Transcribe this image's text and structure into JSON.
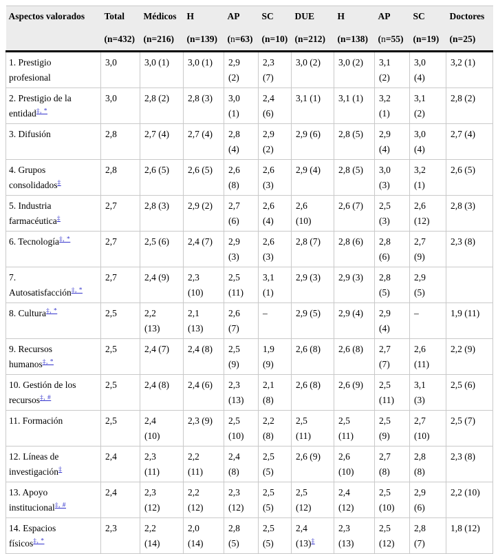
{
  "colors": {
    "link": "#3333cc",
    "header_bg": "#ececec",
    "border": "#c9c9c9",
    "heavy_rule": "#000000"
  },
  "table": {
    "columns": [
      {
        "label": "Aspectos valorados",
        "sub": ""
      },
      {
        "label": "Total",
        "sub": "(n=432)"
      },
      {
        "label": "Médicos",
        "sub": "(n=216)"
      },
      {
        "label": "H",
        "sub": "(n=139)"
      },
      {
        "label": "AP",
        "sub": "(n=63)",
        "light_n": true
      },
      {
        "label": "SC",
        "sub": "(n=10)"
      },
      {
        "label": "DUE",
        "sub": "(n=212)"
      },
      {
        "label": "H",
        "sub": "(n=138)"
      },
      {
        "label": "AP",
        "sub": "(n=55)",
        "light_n": true
      },
      {
        "label": "SC",
        "sub": "(n=19)"
      },
      {
        "label": "Doctores",
        "sub": "(n=25)"
      }
    ],
    "rows": [
      {
        "label": "1. Prestigio\nprofesional",
        "sup": "",
        "cells": [
          "3,0",
          "3,0 (1)",
          "3,0 (1)",
          "2,9\n(2)",
          "2,3\n(7)",
          "3,0 (2)",
          "3,0 (2)",
          "3,1\n(2)",
          "3,0\n(4)",
          "3,2 (1)"
        ]
      },
      {
        "label": "2. Prestigio de la\nentidad",
        "sup": "‡, *",
        "cells": [
          "3,0",
          "2,8 (2)",
          "2,8 (3)",
          "3,0\n(1)",
          "2,4\n(6)",
          "3,1 (1)",
          "3,1 (1)",
          "3,2\n(1)",
          "3,1\n(2)",
          "2,8 (2)"
        ]
      },
      {
        "label": "3. Difusión",
        "sup": "",
        "cells": [
          "2,8",
          "2,7 (4)",
          "2,7 (4)",
          "2,8\n(4)",
          "2,9\n(2)",
          "2,9 (6)",
          "2,8 (5)",
          "2,9\n(4)",
          "3,0\n(4)",
          "2,7 (4)"
        ]
      },
      {
        "label": "4. Grupos\nconsolidados",
        "sup": "‡",
        "cells": [
          "2,8",
          "2,6 (5)",
          "2,6 (5)",
          "2,6\n(8)",
          "2,6\n(3)",
          "2,9 (4)",
          "2,8 (5)",
          "3,0\n(3)",
          "3,2\n(1)",
          "2,6 (5)"
        ]
      },
      {
        "label": "5. Industria\nfarmacéutica",
        "sup": "‡",
        "cells": [
          "2,7",
          "2,8 (3)",
          "2,9 (2)",
          "2,7\n(6)",
          "2,6\n(4)",
          "2,6\n(10)",
          "2,6 (7)",
          "2,5\n(3)",
          "2,6\n(12)",
          "2,8 (3)"
        ]
      },
      {
        "label": "6. Tecnología",
        "sup": "‡, *",
        "cells": [
          "2,7",
          "2,5 (6)",
          "2,4 (7)",
          "2,9\n(3)",
          "2,6\n(3)",
          "2,8 (7)",
          "2,8 (6)",
          "2,8\n(6)",
          "2,7\n(9)",
          "2,3 (8)"
        ]
      },
      {
        "label": "7.\nAutosatisfacción",
        "sup": "‡, *",
        "cells": [
          "2,7",
          "2,4 (9)",
          "2,3\n(10)",
          "2,5\n(11)",
          "3,1\n(1)",
          "2,9 (3)",
          "2,9 (3)",
          "2,8\n(5)",
          "2,9\n(5)",
          ""
        ]
      },
      {
        "label": "8. Cultura",
        "sup": "‡, *",
        "cells": [
          "2,5",
          "2,2\n(13)",
          "2,1\n(13)",
          "2,6\n(7)",
          "–",
          "2,9 (5)",
          "2,9 (4)",
          "2,9\n(4)",
          "–",
          "1,9 (11)"
        ]
      },
      {
        "label": "9. Recursos\nhumanos",
        "sup": "‡, *",
        "cells": [
          "2,5",
          "2,4 (7)",
          "2,4 (8)",
          "2,5\n(9)",
          "1,9\n(9)",
          "2,6 (8)",
          "2,6 (8)",
          "2,7\n(7)",
          "2,6\n(11)",
          "2,2 (9)"
        ]
      },
      {
        "label": "10. Gestión de los\nrecursos",
        "sup": "‡, #",
        "cells": [
          "2,5",
          "2,4 (8)",
          "2,4 (6)",
          "2,3\n(13)",
          "2,1\n(8)",
          "2,6 (8)",
          "2,6 (9)",
          "2,5\n(11)",
          "3,1\n(3)",
          "2,5 (6)"
        ]
      },
      {
        "label": "11. Formación",
        "sup": "",
        "cells": [
          "2,5",
          "2,4\n(10)",
          "2,3 (9)",
          "2,5\n(10)",
          "2,2\n(8)",
          "2,5\n(11)",
          "2,5\n(11)",
          "2,5\n(9)",
          "2,7\n(10)",
          "2,5 (7)"
        ]
      },
      {
        "label": "12. Líneas de\ninvestigación",
        "sup": "‡",
        "cells": [
          "2,4",
          "2,3\n(11)",
          "2,2\n(11)",
          "2,4\n(8)",
          "2,5\n(5)",
          "2,6 (9)",
          "2,6\n(10)",
          "2,7\n(8)",
          "2,8\n(8)",
          "2,3 (8)"
        ]
      },
      {
        "label": "13. Apoyo\ninstitucional",
        "sup": "‡, #",
        "cells": [
          "2,4",
          "2,3\n(12)",
          "2,2\n(12)",
          "2,3\n(12)",
          "2,5\n(5)",
          "2,5\n(12)",
          "2,4\n(12)",
          "2,5\n(10)",
          "2,9\n(6)",
          "2,2 (10)"
        ]
      },
      {
        "label": "14. Espacios\nfísicos",
        "sup": "‡, *",
        "cells": [
          "2,3",
          "2,2\n(14)",
          "2,0\n(14)",
          "2,8\n(5)",
          "2,5\n(5)",
          "2,4\n(13)",
          "2,3\n(13)",
          "2,5\n(12)",
          "2,8\n(7)",
          "1,8 (12)"
        ],
        "cell_sups": {
          "5": "‡"
        }
      }
    ]
  }
}
